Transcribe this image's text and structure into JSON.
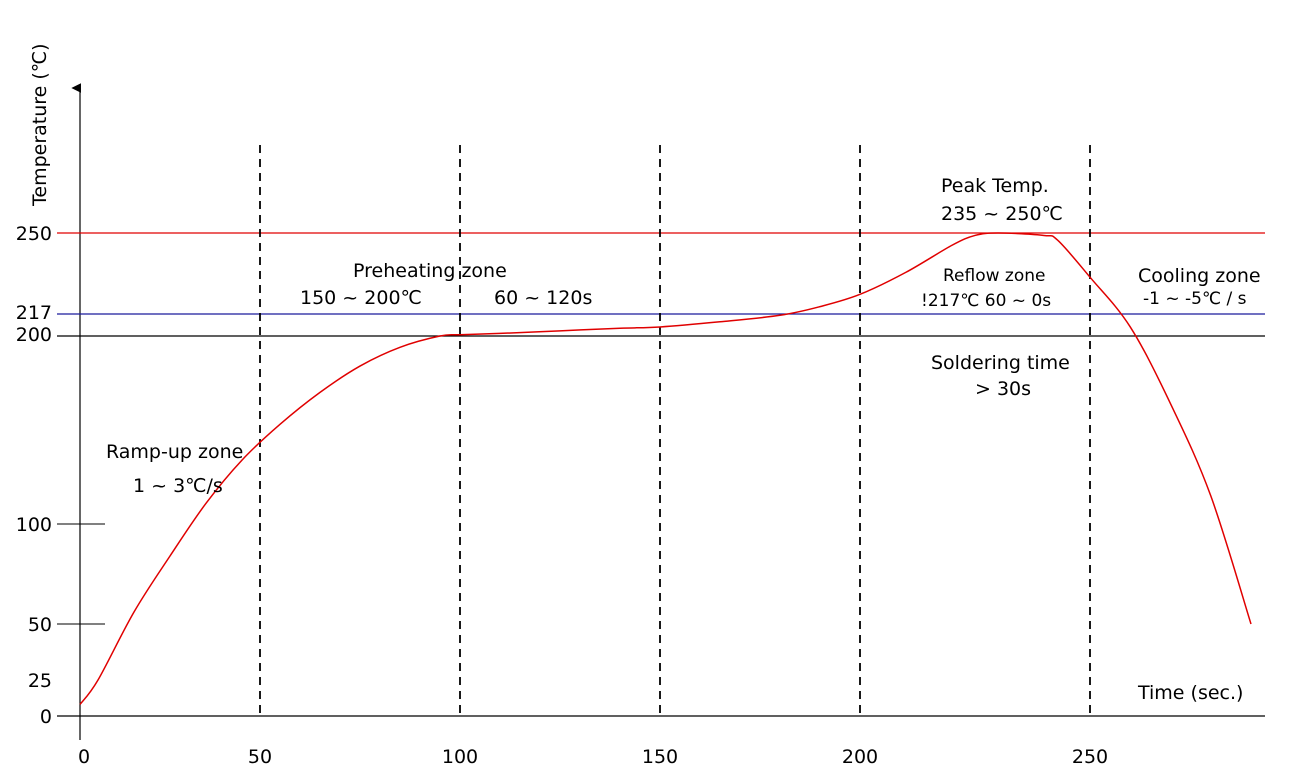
{
  "chart_data": {
    "type": "line",
    "title": "",
    "xlabel": "Time (sec.)",
    "ylabel": "Temperature (℃)",
    "x_ticks": [
      0,
      50,
      100,
      150,
      200,
      250
    ],
    "y_ticks": [
      0,
      25,
      50,
      100,
      200,
      217,
      250
    ],
    "zone_boundaries_x": [
      50,
      100,
      150,
      200,
      250
    ],
    "reference_lines": [
      {
        "y": 250,
        "color": "#e00000"
      },
      {
        "y": 217,
        "color": "#1a1a9c"
      },
      {
        "y": 200,
        "color": "#000000"
      }
    ],
    "series": [
      {
        "color": "#e00000",
        "x": [
          0,
          5,
          15,
          25,
          35,
          45,
          55,
          65,
          75,
          85,
          95,
          100,
          110,
          125,
          140,
          150,
          165,
          180,
          190,
          200,
          210,
          220,
          225,
          230,
          240,
          243,
          250,
          260,
          270,
          280,
          290
        ],
        "y": [
          8,
          25,
          56,
          84,
          111,
          134,
          153,
          170,
          184,
          194,
          200,
          201,
          202,
          204,
          206,
          207,
          211,
          216,
          220,
          225,
          234,
          245,
          249,
          250,
          249,
          247,
          232,
          207,
          164,
          115,
          50
        ]
      }
    ],
    "annotations": {
      "ramp_up_title": "Ramp-up zone",
      "ramp_up_rate": "1 ~ 3℃/s",
      "preheat_title": "Preheating zone",
      "preheat_temp": "150 ~ 200℃",
      "preheat_time": "60 ~ 120s",
      "peak_title": "Peak Temp.",
      "peak_range": "235 ~ 250℃",
      "reflow_title": "Reflow zone",
      "reflow_detail": "!217℃  60 ~ 0s",
      "soldering_title": "Soldering time",
      "soldering_value": "> 30s",
      "cooling_title": "Cooling zone",
      "cooling_rate": "-1 ~ -5℃ / s"
    },
    "grid": false,
    "legend": "none"
  }
}
